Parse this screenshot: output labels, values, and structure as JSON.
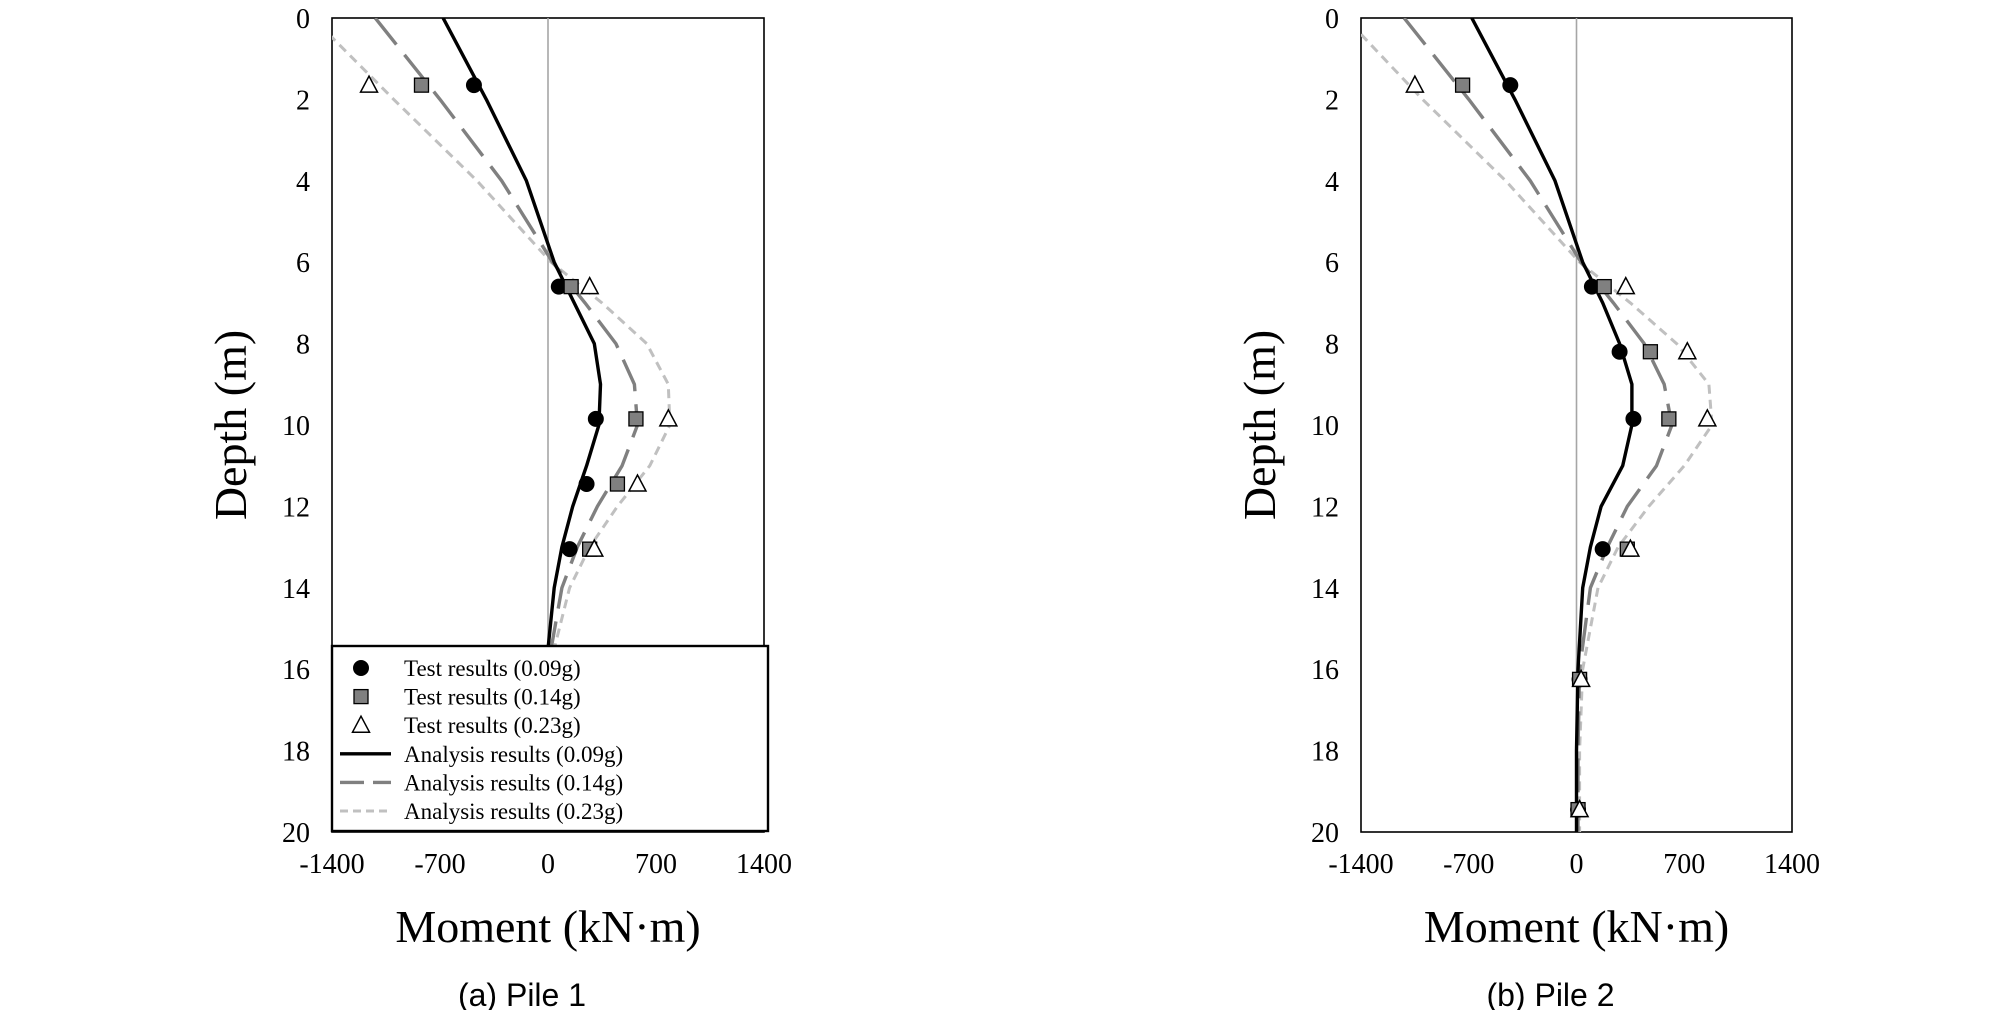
{
  "chart_data": [
    {
      "type": "line",
      "caption": "(a) Pile 1",
      "xlabel": "Moment (kN·m)",
      "ylabel": "Depth (m)",
      "xlim": [
        -1400,
        1400
      ],
      "ylim": [
        20,
        0
      ],
      "xticks": [
        "-1400",
        "-700",
        "0",
        "700",
        "1400"
      ],
      "yticks": [
        "0",
        "2",
        "4",
        "6",
        "8",
        "10",
        "12",
        "14",
        "16",
        "18",
        "20"
      ],
      "legend_position": "bottom-left",
      "series": [
        {
          "name": "Test results (0.09g)",
          "kind": "marker",
          "marker": "circle",
          "color": "#000000",
          "points": [
            [
              -480,
              1.65
            ],
            [
              70,
              6.6
            ],
            [
              310,
              9.85
            ],
            [
              250,
              11.45
            ],
            [
              140,
              13.05
            ]
          ]
        },
        {
          "name": "Test results (0.14g)",
          "kind": "marker",
          "marker": "square",
          "color": "#808080",
          "points": [
            [
              -820,
              1.65
            ],
            [
              150,
              6.6
            ],
            [
              570,
              9.85
            ],
            [
              450,
              11.45
            ],
            [
              270,
              13.05
            ]
          ]
        },
        {
          "name": "Test results (0.23g)",
          "kind": "marker",
          "marker": "triangle",
          "color": "#ffffff",
          "points": [
            [
              -1160,
              1.65
            ],
            [
              270,
              6.6
            ],
            [
              780,
              9.85
            ],
            [
              580,
              11.45
            ],
            [
              300,
              13.05
            ]
          ]
        },
        {
          "name": "Analysis results (0.09g)",
          "kind": "line",
          "dash": "solid",
          "color": "#000000",
          "points": [
            [
              -680,
              0
            ],
            [
              -400,
              2
            ],
            [
              -140,
              4
            ],
            [
              40,
              6
            ],
            [
              170,
              7
            ],
            [
              300,
              8
            ],
            [
              340,
              9
            ],
            [
              330,
              10
            ],
            [
              250,
              11
            ],
            [
              160,
              12
            ],
            [
              90,
              13
            ],
            [
              40,
              14
            ],
            [
              0,
              15.5
            ]
          ]
        },
        {
          "name": "Analysis results (0.14g)",
          "kind": "line",
          "dash": "long",
          "color": "#808080",
          "points": [
            [
              -1120,
              0
            ],
            [
              -700,
              2
            ],
            [
              -300,
              4
            ],
            [
              30,
              6
            ],
            [
              240,
              7
            ],
            [
              440,
              8
            ],
            [
              560,
              9
            ],
            [
              580,
              10
            ],
            [
              480,
              11
            ],
            [
              320,
              12
            ],
            [
              190,
              13
            ],
            [
              90,
              14
            ],
            [
              20,
              15.5
            ]
          ]
        },
        {
          "name": "Analysis results (0.23g)",
          "kind": "line",
          "dash": "short",
          "color": "#c0c0c0",
          "points": [
            [
              -1420,
              0.4
            ],
            [
              -1000,
              2
            ],
            [
              -460,
              4
            ],
            [
              20,
              6
            ],
            [
              350,
              7
            ],
            [
              640,
              8
            ],
            [
              780,
              9
            ],
            [
              790,
              10
            ],
            [
              660,
              11
            ],
            [
              450,
              12
            ],
            [
              270,
              13
            ],
            [
              140,
              14
            ],
            [
              40,
              15.5
            ]
          ]
        }
      ]
    },
    {
      "type": "line",
      "caption": "(b) Pile 2",
      "xlabel": "Moment (kN·m)",
      "ylabel": "Depth (m)",
      "xlim": [
        -1400,
        1400
      ],
      "ylim": [
        20,
        0
      ],
      "xticks": [
        "-1400",
        "-700",
        "0",
        "700",
        "1400"
      ],
      "yticks": [
        "0",
        "2",
        "4",
        "6",
        "8",
        "10",
        "12",
        "14",
        "16",
        "18",
        "20"
      ],
      "series": [
        {
          "name": "Test results (0.09g)",
          "kind": "marker",
          "marker": "circle",
          "color": "#000000",
          "points": [
            [
              -430,
              1.65
            ],
            [
              100,
              6.6
            ],
            [
              280,
              8.2
            ],
            [
              370,
              9.85
            ],
            [
              170,
              13.05
            ],
            [
              20,
              16.25
            ],
            [
              10,
              19.45
            ]
          ]
        },
        {
          "name": "Test results (0.14g)",
          "kind": "marker",
          "marker": "square",
          "color": "#808080",
          "points": [
            [
              -740,
              1.65
            ],
            [
              180,
              6.6
            ],
            [
              480,
              8.2
            ],
            [
              600,
              9.85
            ],
            [
              330,
              13.05
            ],
            [
              20,
              16.25
            ],
            [
              10,
              19.45
            ]
          ]
        },
        {
          "name": "Test results (0.23g)",
          "kind": "marker",
          "marker": "triangle",
          "color": "#ffffff",
          "points": [
            [
              -1050,
              1.65
            ],
            [
              320,
              6.6
            ],
            [
              720,
              8.2
            ],
            [
              850,
              9.85
            ],
            [
              350,
              13.05
            ],
            [
              30,
              16.25
            ],
            [
              20,
              19.45
            ]
          ]
        },
        {
          "name": "Analysis results (0.09g)",
          "kind": "line",
          "dash": "solid",
          "color": "#000000",
          "points": [
            [
              -680,
              0
            ],
            [
              -400,
              2
            ],
            [
              -140,
              4
            ],
            [
              40,
              6
            ],
            [
              170,
              7
            ],
            [
              280,
              8
            ],
            [
              360,
              9
            ],
            [
              360,
              10
            ],
            [
              300,
              11
            ],
            [
              160,
              12
            ],
            [
              90,
              13
            ],
            [
              40,
              14
            ],
            [
              10,
              16
            ],
            [
              0,
              18
            ],
            [
              0,
              20
            ]
          ]
        },
        {
          "name": "Analysis results (0.14g)",
          "kind": "line",
          "dash": "long",
          "color": "#808080",
          "points": [
            [
              -1120,
              0
            ],
            [
              -700,
              2
            ],
            [
              -300,
              4
            ],
            [
              30,
              6
            ],
            [
              240,
              7
            ],
            [
              440,
              8
            ],
            [
              570,
              9
            ],
            [
              620,
              10
            ],
            [
              520,
              11
            ],
            [
              330,
              12
            ],
            [
              200,
              13
            ],
            [
              90,
              14
            ],
            [
              20,
              16
            ],
            [
              10,
              18
            ],
            [
              10,
              20
            ]
          ]
        },
        {
          "name": "Analysis results (0.23g)",
          "kind": "line",
          "dash": "short",
          "color": "#c0c0c0",
          "points": [
            [
              -1400,
              0.4
            ],
            [
              -1000,
              2
            ],
            [
              -460,
              4
            ],
            [
              20,
              6
            ],
            [
              350,
              7
            ],
            [
              650,
              8
            ],
            [
              860,
              9
            ],
            [
              880,
              10
            ],
            [
              700,
              11
            ],
            [
              470,
              12
            ],
            [
              270,
              13
            ],
            [
              140,
              14
            ],
            [
              40,
              16
            ],
            [
              20,
              18
            ],
            [
              20,
              20
            ]
          ]
        }
      ]
    }
  ]
}
